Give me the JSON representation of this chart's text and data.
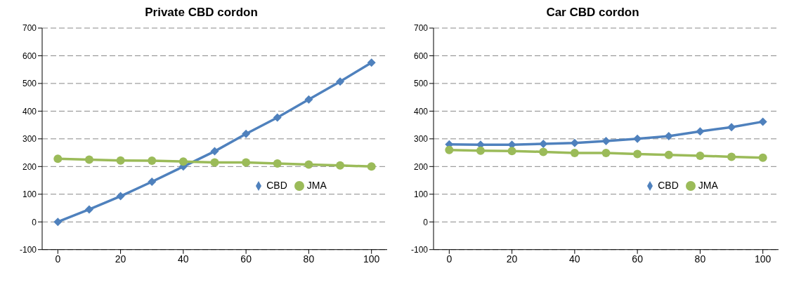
{
  "chart_data": [
    {
      "type": "line",
      "title": "Private CBD cordon",
      "x": [
        0,
        10,
        20,
        30,
        40,
        50,
        60,
        70,
        80,
        90,
        100
      ],
      "xlim": [
        -5,
        105
      ],
      "xticks": [
        0,
        20,
        40,
        60,
        80,
        100
      ],
      "ylim": [
        -100,
        700
      ],
      "yticks": [
        -100,
        0,
        100,
        200,
        300,
        400,
        500,
        600,
        700
      ],
      "grid": "y",
      "legend": "bottom right",
      "series": [
        {
          "name": "CBD",
          "color": "#4f81bd",
          "marker": "diamond",
          "values": [
            0,
            45,
            93,
            145,
            200,
            255,
            318,
            377,
            442,
            507,
            575
          ]
        },
        {
          "name": "JMA",
          "color": "#9bbb59",
          "marker": "circle",
          "values": [
            228,
            225,
            222,
            221,
            218,
            215,
            215,
            211,
            207,
            204,
            200
          ]
        }
      ]
    },
    {
      "type": "line",
      "title": "Car CBD cordon",
      "x": [
        0,
        10,
        20,
        30,
        40,
        50,
        60,
        70,
        80,
        90,
        100
      ],
      "xlim": [
        -5,
        105
      ],
      "xticks": [
        0,
        20,
        40,
        60,
        80,
        100
      ],
      "ylim": [
        -100,
        700
      ],
      "yticks": [
        -100,
        0,
        100,
        200,
        300,
        400,
        500,
        600,
        700
      ],
      "grid": "y",
      "legend": "bottom right",
      "series": [
        {
          "name": "CBD",
          "color": "#4f81bd",
          "marker": "diamond",
          "values": [
            280,
            279,
            279,
            282,
            285,
            292,
            300,
            310,
            327,
            342,
            362
          ]
        },
        {
          "name": "JMA",
          "color": "#9bbb59",
          "marker": "circle",
          "values": [
            260,
            257,
            256,
            253,
            249,
            249,
            245,
            242,
            239,
            235,
            232
          ]
        }
      ]
    }
  ]
}
